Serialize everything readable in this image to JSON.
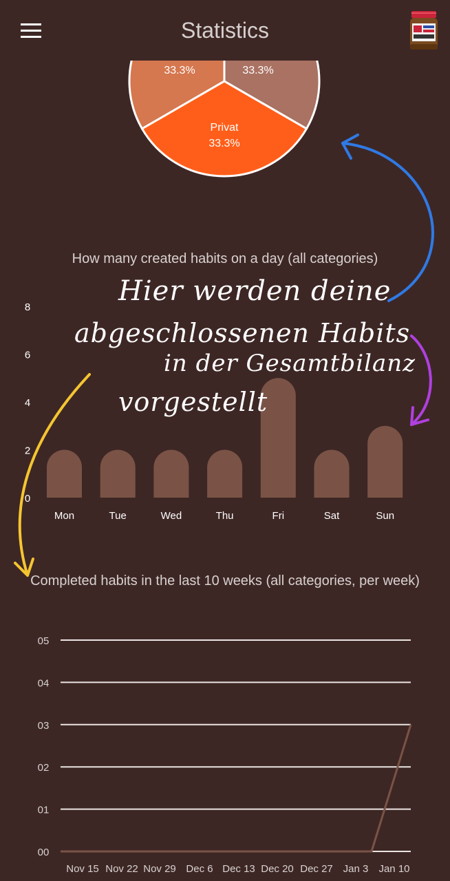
{
  "header": {
    "title": "Statistics",
    "menu_icon": "hamburger-menu-icon",
    "avatar_icon": "peanut-butter-jar-avatar"
  },
  "colors": {
    "background": "#3d2725",
    "bar": "#7a5346",
    "line": "#7a5346",
    "pie_privat": "#ff5e1a",
    "pie_left": "#d5774f",
    "pie_right": "#a97263",
    "arrow_blue": "#2f7ae5",
    "arrow_purple": "#b040e0",
    "arrow_yellow": "#f5c531"
  },
  "annotation": {
    "line1": "Hier werden deine",
    "line2": "abgeschlossenen Habits",
    "line3": "in der Gesamtbilanz",
    "line4": "vorgestellt"
  },
  "chart_data": [
    {
      "type": "pie",
      "slices": [
        {
          "label": "",
          "percent_label": "33.3%",
          "value": 33.3,
          "color": "#d5774f"
        },
        {
          "label": "",
          "percent_label": "33.3%",
          "value": 33.3,
          "color": "#a97263"
        },
        {
          "label": "Privat",
          "percent_label": "33.3%",
          "value": 33.3,
          "color": "#ff5e1a"
        }
      ]
    },
    {
      "type": "bar",
      "title": "How many created habits on a day (all categories)",
      "categories": [
        "Mon",
        "Tue",
        "Wed",
        "Thu",
        "Fri",
        "Sat",
        "Sun"
      ],
      "values": [
        2,
        2,
        2,
        2,
        5,
        2,
        3
      ],
      "yticks": [
        "0",
        "2",
        "4",
        "6",
        "8"
      ],
      "ylim": [
        0,
        8
      ]
    },
    {
      "type": "line",
      "title": "Completed habits in the last 10 weeks (all categories, per week)",
      "categories": [
        "Nov 15",
        "Nov 22",
        "Nov 29",
        "Dec 6",
        "Dec 13",
        "Dec 20",
        "Dec 27",
        "Jan 3",
        "Jan 10"
      ],
      "values": [
        0,
        0,
        0,
        0,
        0,
        0,
        0,
        0,
        3
      ],
      "yticks": [
        "00",
        "01",
        "02",
        "03",
        "04",
        "05"
      ],
      "ylim": [
        0,
        5
      ],
      "grid": true
    }
  ]
}
